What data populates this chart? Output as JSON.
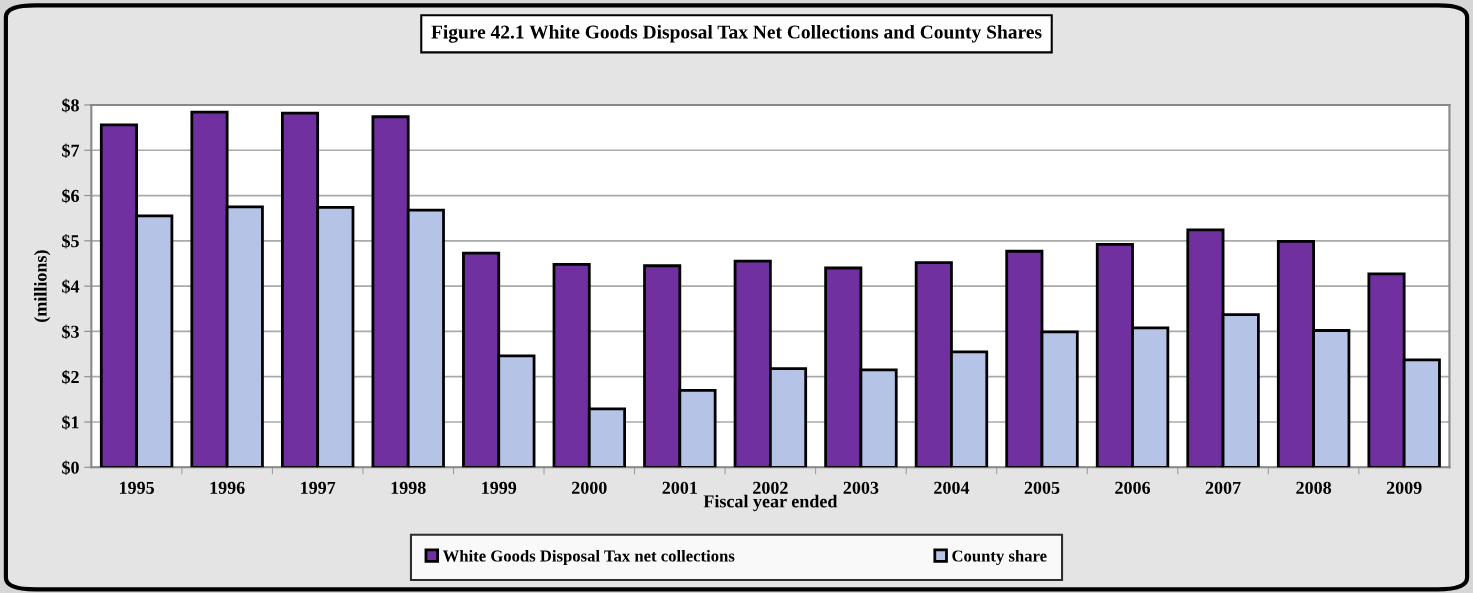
{
  "chart_data": {
    "type": "bar",
    "title": "Figure 42.1 White Goods Disposal Tax Net Collections and County Shares",
    "xlabel": "Fiscal year ended",
    "ylabel": "(millions)",
    "categories": [
      "1995",
      "1996",
      "1997",
      "1998",
      "1999",
      "2000",
      "2001",
      "2002",
      "2003",
      "2004",
      "2005",
      "2006",
      "2007",
      "2008",
      "2009"
    ],
    "series": [
      {
        "name": "White Goods Disposal Tax net collections",
        "color": "#7030a0",
        "values": [
          7.56,
          7.84,
          7.82,
          7.74,
          4.73,
          4.48,
          4.45,
          4.55,
          4.4,
          4.52,
          4.77,
          4.92,
          5.24,
          4.99,
          4.27
        ]
      },
      {
        "name": "County share",
        "color": "#b4c3e6",
        "values": [
          5.55,
          5.75,
          5.74,
          5.68,
          2.46,
          1.29,
          1.7,
          2.18,
          2.15,
          2.55,
          2.99,
          3.08,
          3.37,
          3.02,
          2.37
        ]
      }
    ],
    "ylim": [
      0,
      8
    ],
    "yticks": [
      {
        "value": 0,
        "label": "$0"
      },
      {
        "value": 1,
        "label": "$1"
      },
      {
        "value": 2,
        "label": "$2"
      },
      {
        "value": 3,
        "label": "$3"
      },
      {
        "value": 4,
        "label": "$4"
      },
      {
        "value": 5,
        "label": "$5"
      },
      {
        "value": 6,
        "label": "$6"
      },
      {
        "value": 7,
        "label": "$7"
      },
      {
        "value": 8,
        "label": "$8"
      }
    ],
    "grid": "y",
    "legend": "bottom"
  }
}
